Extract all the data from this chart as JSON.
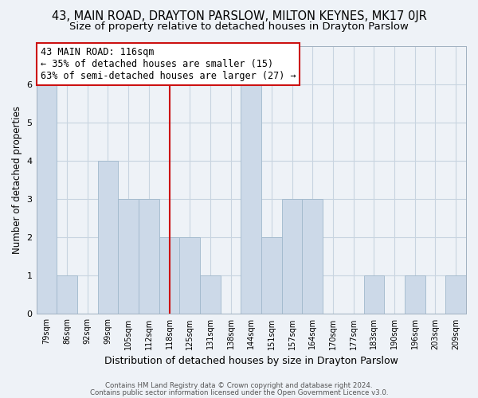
{
  "title1": "43, MAIN ROAD, DRAYTON PARSLOW, MILTON KEYNES, MK17 0JR",
  "title2": "Size of property relative to detached houses in Drayton Parslow",
  "xlabel": "Distribution of detached houses by size in Drayton Parslow",
  "ylabel": "Number of detached properties",
  "categories": [
    "79sqm",
    "86sqm",
    "92sqm",
    "99sqm",
    "105sqm",
    "112sqm",
    "118sqm",
    "125sqm",
    "131sqm",
    "138sqm",
    "144sqm",
    "151sqm",
    "157sqm",
    "164sqm",
    "170sqm",
    "177sqm",
    "183sqm",
    "190sqm",
    "196sqm",
    "203sqm",
    "209sqm"
  ],
  "values": [
    6,
    1,
    0,
    4,
    3,
    3,
    2,
    2,
    1,
    0,
    6,
    2,
    3,
    3,
    0,
    0,
    1,
    0,
    1,
    0,
    1
  ],
  "bar_color": "#ccd9e8",
  "bar_edge_color": "#a0b8cc",
  "subject_line_index": 6,
  "subject_line_color": "#cc1111",
  "annotation_text": "43 MAIN ROAD: 116sqm\n← 35% of detached houses are smaller (15)\n63% of semi-detached houses are larger (27) →",
  "annotation_box_edge": "#cc1111",
  "annotation_box_face": "#ffffff",
  "ylim": [
    0,
    7
  ],
  "yticks": [
    0,
    1,
    2,
    3,
    4,
    5,
    6,
    7
  ],
  "grid_color": "#c8d4e0",
  "background_color": "#eef2f7",
  "plot_bg_color": "#eef2f7",
  "footer1": "Contains HM Land Registry data © Crown copyright and database right 2024.",
  "footer2": "Contains public sector information licensed under the Open Government Licence v3.0.",
  "title_fontsize": 10.5,
  "subtitle_fontsize": 9.5,
  "annotation_fontsize": 8.5,
  "bar_width": 1.0
}
